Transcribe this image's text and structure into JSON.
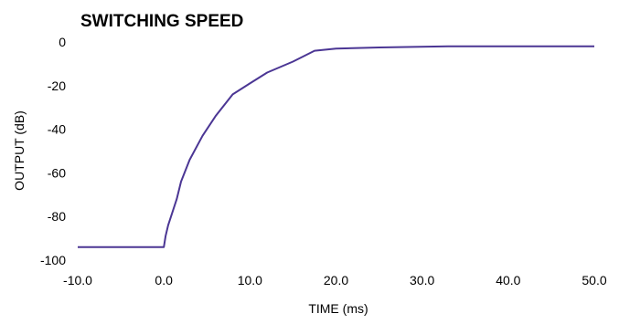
{
  "chart_data": {
    "type": "line",
    "title": "SWITCHING SPEED",
    "xlabel": "TIME  (ms)",
    "ylabel": "OUTPUT  (dB)",
    "xlim": [
      -10,
      50
    ],
    "ylim": [
      -100,
      0
    ],
    "x_ticks": [
      -10,
      0,
      10,
      20,
      30,
      40,
      50
    ],
    "x_tick_labels": [
      "-10.0",
      "0.0",
      "10.0",
      "20.0",
      "30.0",
      "40.0",
      "50.0"
    ],
    "y_ticks": [
      0,
      -20,
      -40,
      -60,
      -80,
      -100
    ],
    "y_tick_labels": [
      "0",
      "-20",
      "-40",
      "-60",
      "-80",
      "-100"
    ],
    "grid": false,
    "line_color": "#4b3694",
    "series": [
      {
        "x": [
          -10,
          0,
          0.2,
          0.5,
          1.0,
          1.5,
          2.0,
          3.0,
          4.5,
          6.0,
          8.0,
          10.0,
          12.0,
          15.0,
          17.5,
          20.0,
          25.0,
          33.0,
          40.0,
          50.0
        ],
        "y": [
          -94,
          -94,
          -89,
          -84,
          -78,
          -72,
          -64,
          -54,
          -43,
          -34,
          -24,
          -19,
          -14,
          -9,
          -4,
          -3,
          -2.5,
          -2,
          -2,
          -2
        ]
      }
    ]
  }
}
